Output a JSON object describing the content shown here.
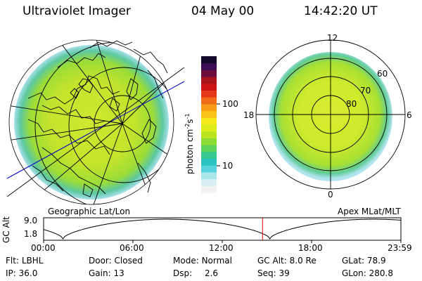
{
  "header": {
    "title": "Ultraviolet Imager",
    "date": "04 May 00",
    "time": "14:42:20 UT"
  },
  "colorbar": {
    "label_html": "photon cm",
    "label_exp1": "-2",
    "label_mid": "s",
    "label_exp2": "-1",
    "ticks": [
      "100",
      "10"
    ],
    "colors": [
      "#f2f2f2",
      "#d8f0f4",
      "#a8e6ec",
      "#58d2dc",
      "#2cc4c0",
      "#38c890",
      "#5cd45c",
      "#8cdc34",
      "#b8e420",
      "#dcec18",
      "#f4e818",
      "#f8c418",
      "#f89c18",
      "#f06c18",
      "#e43818",
      "#cc1414",
      "#a8141c",
      "#6c0c3c",
      "#3c0c54",
      "#140828"
    ]
  },
  "left_map": {
    "caption": "Geographic Lat/Lon"
  },
  "right_map": {
    "caption": "Apex MLat/MLT",
    "mlt_labels": {
      "top": "12",
      "left": "18",
      "right": "6",
      "bottom": "0"
    },
    "lat_labels": [
      "60",
      "70",
      "80"
    ]
  },
  "altitude_plot": {
    "ylabel": "GC Alt",
    "yticks": [
      "9.0",
      "1.8"
    ],
    "xticks": [
      "00:00",
      "06:00",
      "12:00",
      "18:00",
      "23:59"
    ],
    "current_time_marker_hours": 14.706
  },
  "info": {
    "filter_label": "Flt:",
    "filter_value": "LBHL",
    "ip_label": "IP:",
    "ip_value": "36.0",
    "door_label": "Door:",
    "door_value": "Closed",
    "gain_label": "Gain:",
    "gain_value": "13",
    "mode_label": "Mode:",
    "mode_value": "Normal",
    "dsp_label": "Dsp:",
    "dsp_value": "2.6",
    "gcalt_label": "GC Alt:",
    "gcalt_value": "8.0 Re",
    "seq_label": "Seq:",
    "seq_value": "39",
    "glat_label": "GLat:",
    "glat_value": "78.9",
    "glon_label": "GLon:",
    "glon_value": "280.8"
  }
}
